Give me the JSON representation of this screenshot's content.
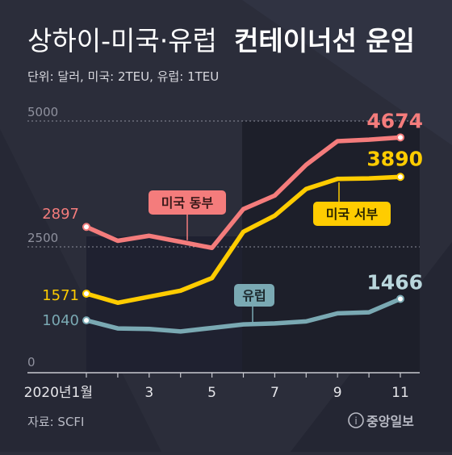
{
  "title": {
    "part1": "상하이-미국·유럽",
    "part2": "컨테이너선 운임"
  },
  "unit_note": "단위: 달러, 미국: 2TEU, 유럽: 1TEU",
  "source": "자료: SCFI",
  "logo_text": "중앙일보",
  "chart_data": {
    "type": "line",
    "x": [
      1,
      2,
      3,
      4,
      5,
      6,
      7,
      8,
      9,
      10,
      11
    ],
    "xtick_labels": [
      "2020년1월",
      "3",
      "5",
      "7",
      "9",
      "11"
    ],
    "xtick_values": [
      1,
      3,
      5,
      7,
      9,
      11
    ],
    "ytick_labels": [
      "0",
      "2500",
      "5000"
    ],
    "ytick_values": [
      0,
      2500,
      5000
    ],
    "ylim": [
      0,
      5000
    ],
    "xlim": [
      1,
      11
    ],
    "grid": "dashed at 2500 and 5000",
    "series": [
      {
        "name": "미국 동부",
        "color": "#f47c7c",
        "values": [
          2897,
          2620,
          2720,
          2600,
          2480,
          3250,
          3520,
          4130,
          4600,
          4630,
          4674
        ],
        "start_label": "2897",
        "end_label": "4674",
        "end_label_color": "#f47c7c"
      },
      {
        "name": "미국 서부",
        "color": "#ffcc00",
        "values": [
          1571,
          1390,
          1510,
          1630,
          1880,
          2800,
          3120,
          3650,
          3850,
          3860,
          3890
        ],
        "start_label": "1571",
        "end_label": "3890",
        "end_label_color": "#ffcc00"
      },
      {
        "name": "유럽",
        "color": "#7aa9b3",
        "values": [
          1040,
          880,
          870,
          820,
          890,
          960,
          980,
          1020,
          1180,
          1200,
          1466
        ],
        "start_label": "1040",
        "end_label": "1466",
        "end_label_color": "#b9d6dc"
      }
    ]
  },
  "colors": {
    "background": "#2b2d3a",
    "plot_panel": "#1d1f2a",
    "text_light": "#d8d8de",
    "text_dim": "#9a9ca8"
  }
}
